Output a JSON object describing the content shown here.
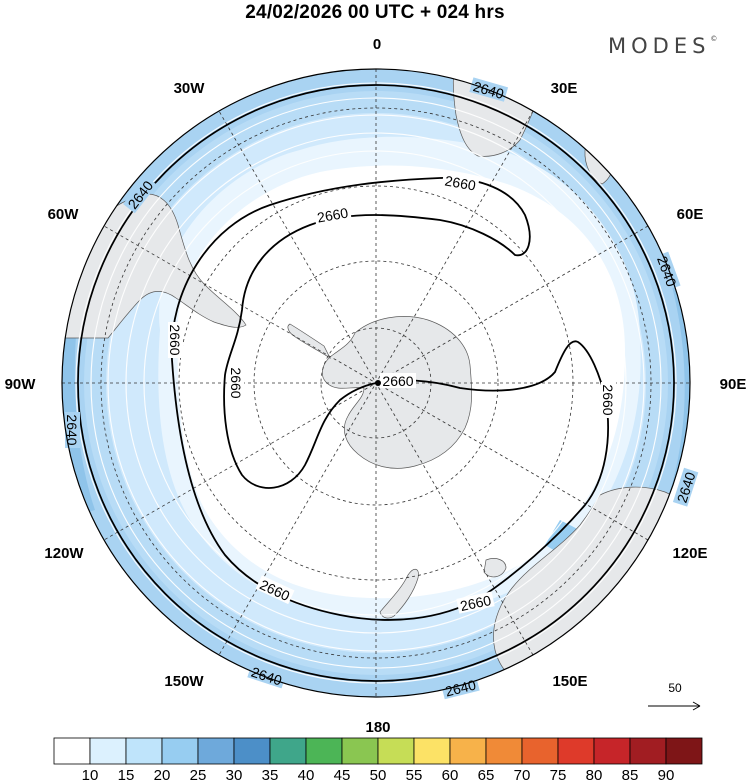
{
  "title": "24/02/2026  00 UTC  + 024 hrs",
  "brand": "MODES",
  "brand_mark": "©",
  "longitude_labels": [
    "0",
    "30E",
    "60E",
    "90E",
    "120E",
    "150E",
    "180",
    "150W",
    "120W",
    "90W",
    "60W",
    "30W"
  ],
  "contours": [
    {
      "value": "2640",
      "labels": [
        "2640",
        "2640",
        "2640",
        "2640",
        "2640",
        "2640",
        "2640"
      ]
    },
    {
      "value": "2660",
      "labels": [
        "2660",
        "2660",
        "2660",
        "2660",
        "2660",
        "2660",
        "2660",
        "2660"
      ]
    }
  ],
  "reference_vector": "50",
  "colorbar": {
    "ticks": [
      "10",
      "15",
      "20",
      "25",
      "30",
      "35",
      "40",
      "45",
      "50",
      "55",
      "60",
      "65",
      "70",
      "75",
      "80",
      "85",
      "90"
    ],
    "colors": [
      "#ffffff",
      "#dcf1fe",
      "#bfe4fb",
      "#97cdf1",
      "#6ea9db",
      "#4c8fc8",
      "#3fa68a",
      "#4cb556",
      "#8ac651",
      "#c6dd56",
      "#fce266",
      "#f7b24a",
      "#f08a37",
      "#e8632d",
      "#de3a2a",
      "#c62529",
      "#a11d22",
      "#7e1517"
    ]
  }
}
